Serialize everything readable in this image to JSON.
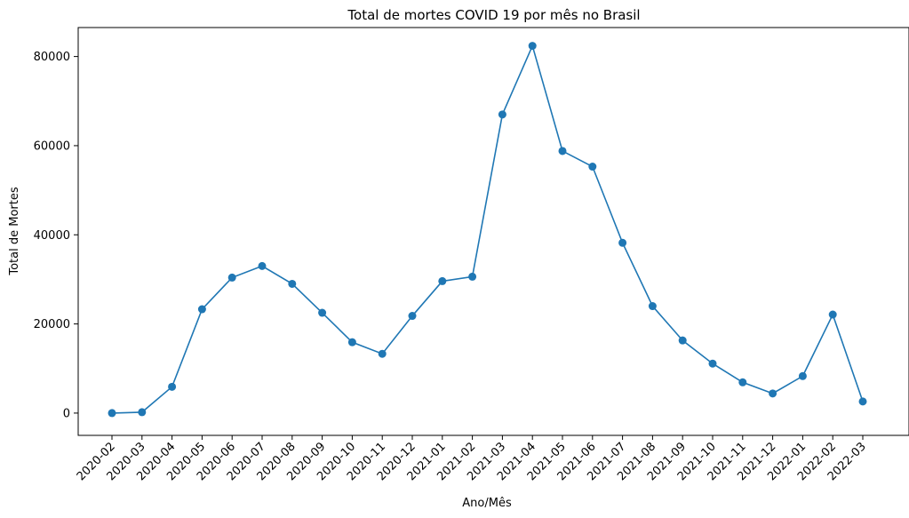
{
  "chart_data": {
    "type": "line",
    "title": "Total de mortes COVID 19 por mês no Brasil",
    "xlabel": "Ano/Mês",
    "ylabel": "Total de Mortes",
    "categories": [
      "2020-02",
      "2020-03",
      "2020-04",
      "2020-05",
      "2020-06",
      "2020-07",
      "2020-08",
      "2020-09",
      "2020-10",
      "2020-11",
      "2020-12",
      "2021-01",
      "2021-02",
      "2021-03",
      "2021-04",
      "2021-05",
      "2021-06",
      "2021-07",
      "2021-08",
      "2021-09",
      "2021-10",
      "2021-11",
      "2021-12",
      "2022-01",
      "2022-02",
      "2022-03"
    ],
    "values": [
      0,
      200,
      5900,
      23300,
      30400,
      33000,
      29000,
      22500,
      15900,
      13300,
      21800,
      29600,
      30600,
      67000,
      82400,
      58800,
      55300,
      38200,
      24000,
      16300,
      11100,
      6900,
      4400,
      8300,
      22100,
      2600
    ],
    "ylim": [
      -5000,
      86500
    ],
    "yticks": [
      0,
      20000,
      40000,
      60000,
      80000
    ],
    "ytick_labels": [
      "0",
      "20000",
      "40000",
      "60000",
      "80000"
    ],
    "grid": false,
    "line_color": "#1f77b4",
    "marker": "circle"
  }
}
